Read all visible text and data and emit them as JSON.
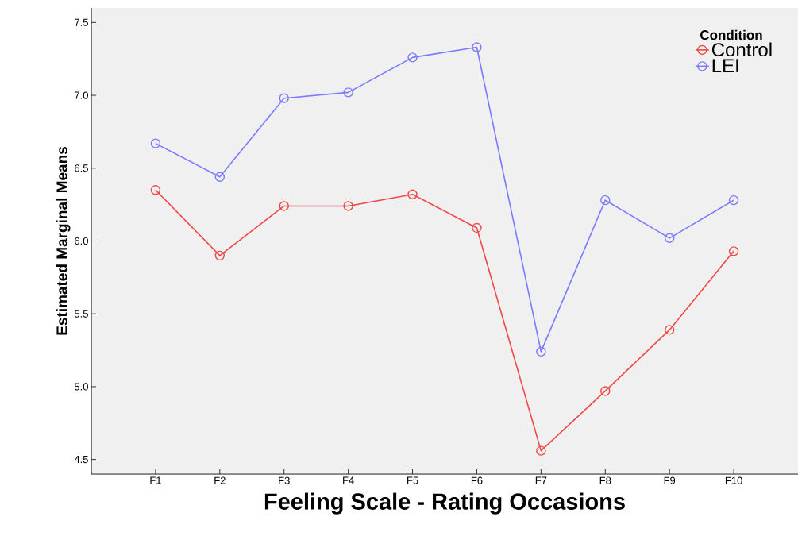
{
  "chart_data": {
    "type": "line",
    "xlabel": "Feeling Scale - Rating Occasions",
    "ylabel": "Estimated Marginal Means",
    "legend_title": "Condition",
    "legend": "top right",
    "marker": "circle",
    "line_style": "solid",
    "grid": false,
    "categories": [
      "F1",
      "F2",
      "F3",
      "F4",
      "F5",
      "F6",
      "F7",
      "F8",
      "F9",
      "F10"
    ],
    "ylim": [
      4.4,
      7.6
    ],
    "yticks": [
      {
        "value": 4.5,
        "label": "4.5"
      },
      {
        "value": 5.0,
        "label": "5.0"
      },
      {
        "value": 5.5,
        "label": "5.5"
      },
      {
        "value": 6.0,
        "label": "6.0"
      },
      {
        "value": 6.5,
        "label": "6.5"
      },
      {
        "value": 7.0,
        "label": "7.0"
      },
      {
        "value": 7.5,
        "label": "7.5"
      }
    ],
    "series": [
      {
        "name": "Control",
        "color": "#f04848",
        "values": [
          6.35,
          5.9,
          6.24,
          6.24,
          6.32,
          6.09,
          4.56,
          4.97,
          5.39,
          5.93
        ]
      },
      {
        "name": "LEI",
        "color": "#7a7aff",
        "values": [
          6.67,
          6.44,
          6.98,
          7.02,
          7.26,
          7.33,
          5.24,
          6.28,
          6.02,
          6.28
        ]
      }
    ]
  }
}
